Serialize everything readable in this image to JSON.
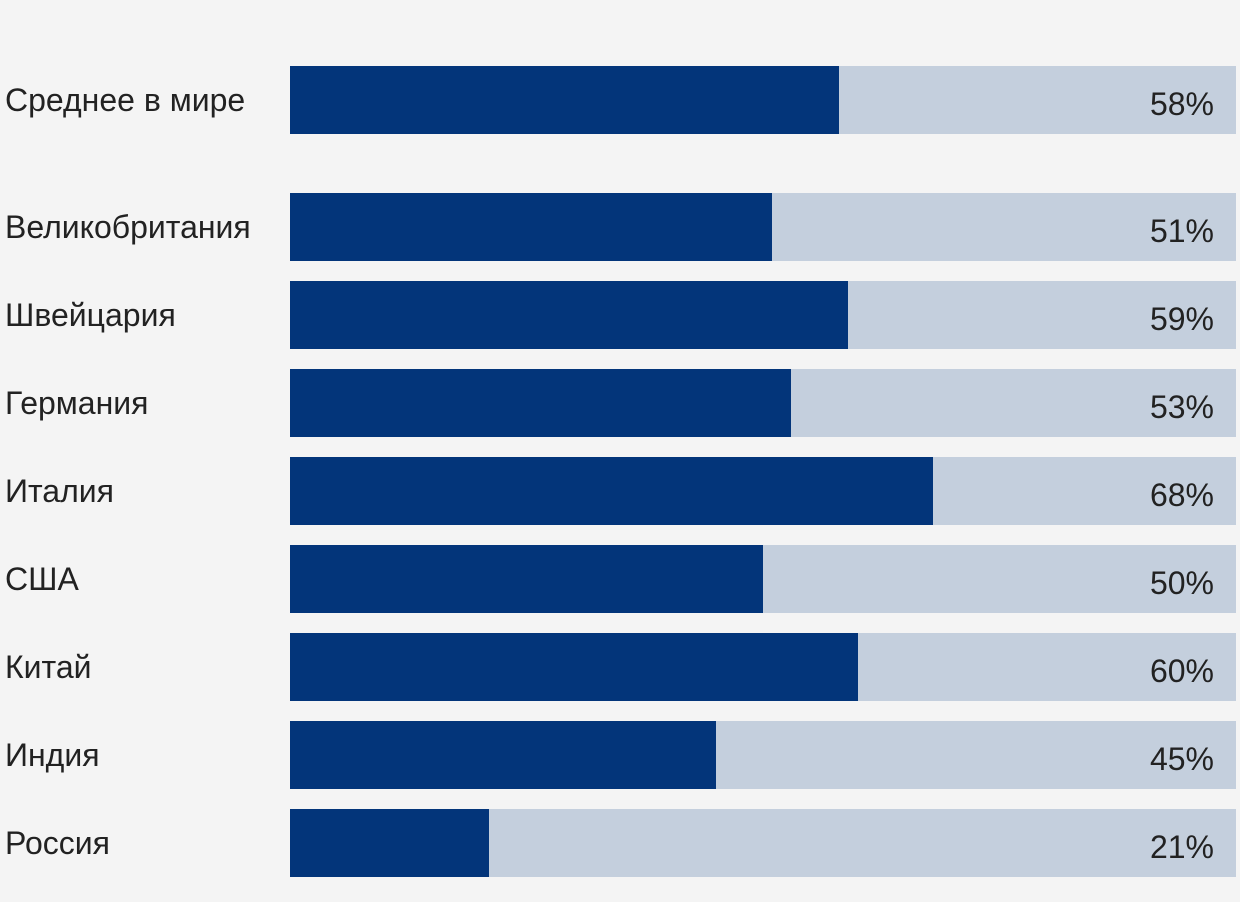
{
  "chart_data": {
    "type": "bar",
    "orientation": "horizontal",
    "title": "",
    "xlabel": "",
    "ylabel": "",
    "xlim": [
      0,
      100
    ],
    "categories": [
      "Среднее в мире",
      "Великобритания",
      "Швейцария",
      "Германия",
      "Италия",
      "США",
      "Китай",
      "Индия",
      "Россия"
    ],
    "values": [
      58,
      51,
      59,
      53,
      68,
      50,
      60,
      45,
      21
    ],
    "value_labels": [
      "58%",
      "51%",
      "59%",
      "53%",
      "68%",
      "50%",
      "60%",
      "45%",
      "21%"
    ],
    "grid": false,
    "colors": {
      "fill": "#03357a",
      "track": "#c4cfdd",
      "background": "#f4f4f4"
    }
  }
}
